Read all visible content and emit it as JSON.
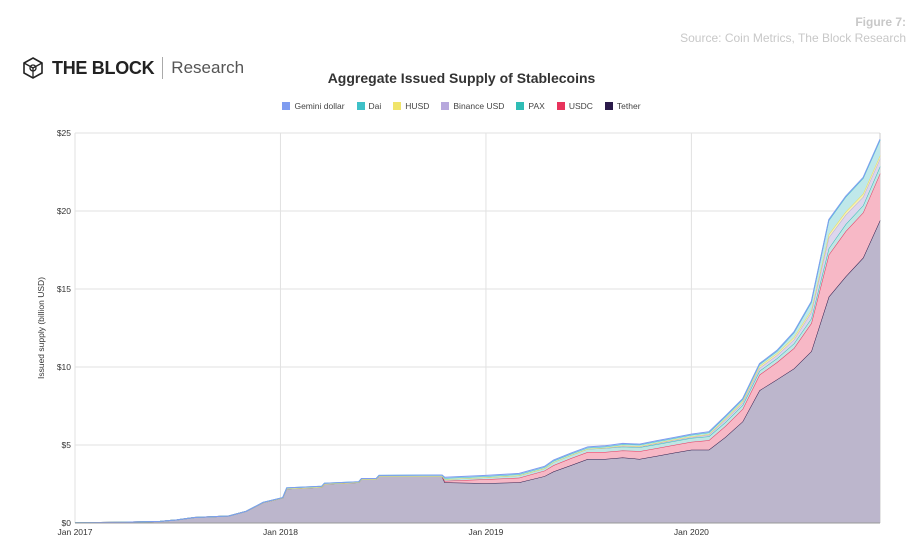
{
  "figure": {
    "label": "Figure 7:",
    "source": "Source: Coin Metrics, The Block Research"
  },
  "logo": {
    "brand": "THE BLOCK",
    "sub": "Research"
  },
  "chart_data": {
    "type": "area",
    "stacked": true,
    "title": "Aggregate Issued Supply of Stablecoins",
    "ylabel": "Issued supply (billion USD)",
    "xlabel": "",
    "ylim": [
      0,
      25
    ],
    "xlim": [
      "2017-01-01",
      "2020-12-01"
    ],
    "yticks": [
      "$0",
      "$5",
      "$10",
      "$15",
      "$20",
      "$25"
    ],
    "ytick_values": [
      0,
      5,
      10,
      15,
      20,
      25
    ],
    "xticks": [
      "Jan 2017",
      "Jan 2018",
      "Jan 2019",
      "Jan 2020"
    ],
    "xtick_dates": [
      "2017-01-01",
      "2018-01-01",
      "2019-01-01",
      "2020-01-01"
    ],
    "grid": true,
    "legend_position": "top",
    "x": [
      "2017-01-01",
      "2017-04-01",
      "2017-06-01",
      "2017-07-01",
      "2017-08-01",
      "2017-10-01",
      "2017-11-01",
      "2017-12-01",
      "2018-01-05",
      "2018-01-12",
      "2018-03-15",
      "2018-03-20",
      "2018-05-20",
      "2018-05-25",
      "2018-06-20",
      "2018-06-25",
      "2018-10-15",
      "2018-10-20",
      "2019-01-01",
      "2019-03-01",
      "2019-04-15",
      "2019-05-01",
      "2019-06-01",
      "2019-07-01",
      "2019-08-01",
      "2019-09-01",
      "2019-10-01",
      "2019-11-01",
      "2019-12-01",
      "2020-01-01",
      "2020-02-01",
      "2020-03-01",
      "2020-04-01",
      "2020-05-01",
      "2020-06-01",
      "2020-07-01",
      "2020-08-01",
      "2020-09-01",
      "2020-10-01",
      "2020-11-01",
      "2020-12-01"
    ],
    "series": [
      {
        "name": "Tether",
        "color": "#bcb6cc",
        "line": "#2b1a4a",
        "values": [
          0.01,
          0.05,
          0.1,
          0.2,
          0.35,
          0.45,
          0.75,
          1.3,
          1.6,
          2.2,
          2.3,
          2.5,
          2.6,
          2.8,
          2.8,
          3.0,
          3.0,
          2.6,
          2.55,
          2.6,
          3.0,
          3.3,
          3.7,
          4.1,
          4.1,
          4.2,
          4.1,
          4.3,
          4.5,
          4.7,
          4.7,
          5.5,
          6.5,
          8.5,
          9.2,
          9.9,
          11,
          14.5,
          15.8,
          17,
          19.4
        ]
      },
      {
        "name": "USDC",
        "color": "#f7b8c6",
        "line": "#e8335c",
        "values": [
          0,
          0,
          0,
          0,
          0,
          0,
          0,
          0,
          0,
          0,
          0,
          0,
          0,
          0,
          0,
          0,
          0,
          0.1,
          0.25,
          0.3,
          0.35,
          0.4,
          0.45,
          0.45,
          0.45,
          0.45,
          0.5,
          0.5,
          0.5,
          0.5,
          0.6,
          0.7,
          0.8,
          1.0,
          1.1,
          1.3,
          1.8,
          2.7,
          2.9,
          2.9,
          3.0
        ]
      },
      {
        "name": "PAX",
        "color": "#bfe6e4",
        "line": "#2fbdb5",
        "values": [
          0,
          0,
          0,
          0,
          0,
          0,
          0,
          0,
          0,
          0,
          0,
          0,
          0,
          0,
          0,
          0,
          0,
          0.1,
          0.12,
          0.15,
          0.15,
          0.2,
          0.2,
          0.2,
          0.25,
          0.25,
          0.25,
          0.25,
          0.25,
          0.25,
          0.25,
          0.25,
          0.25,
          0.25,
          0.25,
          0.3,
          0.3,
          0.4,
          0.45,
          0.45,
          0.45
        ]
      },
      {
        "name": "Binance USD",
        "color": "#ddd6ee",
        "line": "#b7a8dd",
        "values": [
          0,
          0,
          0,
          0,
          0,
          0,
          0,
          0,
          0,
          0,
          0,
          0,
          0,
          0,
          0,
          0,
          0,
          0,
          0,
          0,
          0,
          0,
          0,
          0,
          0,
          0.02,
          0.03,
          0.05,
          0.05,
          0.05,
          0.1,
          0.15,
          0.15,
          0.18,
          0.2,
          0.25,
          0.4,
          0.7,
          0.6,
          0.55,
          0.5
        ]
      },
      {
        "name": "HUSD",
        "color": "#f5f0b8",
        "line": "#e7dc5c",
        "values": [
          0,
          0,
          0,
          0,
          0,
          0,
          0,
          0,
          0,
          0,
          0,
          0,
          0,
          0,
          0,
          0,
          0,
          0,
          0,
          0,
          0,
          0,
          0,
          0,
          0.02,
          0.05,
          0.05,
          0.05,
          0.05,
          0.05,
          0.05,
          0.08,
          0.1,
          0.12,
          0.12,
          0.15,
          0.15,
          0.2,
          0.2,
          0.2,
          0.2
        ]
      },
      {
        "name": "Dai",
        "color": "#bfe8ea",
        "line": "#3ec1c8",
        "values": [
          0,
          0,
          0,
          0,
          0,
          0,
          0,
          0.02,
          0.03,
          0.05,
          0.05,
          0.05,
          0.05,
          0.05,
          0.05,
          0.05,
          0.08,
          0.08,
          0.08,
          0.08,
          0.08,
          0.08,
          0.08,
          0.08,
          0.08,
          0.08,
          0.08,
          0.08,
          0.08,
          0.1,
          0.1,
          0.12,
          0.12,
          0.12,
          0.15,
          0.3,
          0.5,
          0.9,
          0.95,
          1.0,
          1.0
        ]
      },
      {
        "name": "Gemini dollar",
        "color": "#c9d6f7",
        "line": "#7f9cf0",
        "values": [
          0,
          0,
          0,
          0,
          0,
          0,
          0,
          0,
          0,
          0,
          0,
          0,
          0,
          0,
          0,
          0,
          0,
          0.05,
          0.05,
          0.05,
          0.05,
          0.05,
          0.05,
          0.05,
          0.05,
          0.05,
          0.05,
          0.05,
          0.05,
          0.05,
          0.05,
          0.05,
          0.05,
          0.05,
          0.05,
          0.05,
          0.05,
          0.05,
          0.05,
          0.05,
          0.05
        ]
      }
    ]
  },
  "legend": [
    {
      "name": "Gemini dollar",
      "color": "#7f9cf0"
    },
    {
      "name": "Dai",
      "color": "#3ec1c8"
    },
    {
      "name": "HUSD",
      "color": "#f0e46a"
    },
    {
      "name": "Binance USD",
      "color": "#b7a8dd"
    },
    {
      "name": "PAX",
      "color": "#2fbdb5"
    },
    {
      "name": "USDC",
      "color": "#e8335c"
    },
    {
      "name": "Tether",
      "color": "#2b1a4a"
    }
  ]
}
